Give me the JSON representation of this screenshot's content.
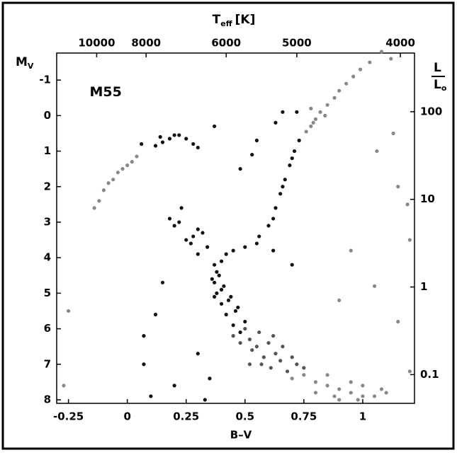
{
  "chart_data": {
    "type": "scatter",
    "xlabel": "B–V",
    "ylabel": {
      "main": "M",
      "sub": "V"
    },
    "x2label": {
      "main": "T",
      "sub": "eff",
      "unit": "[K]"
    },
    "y2label": {
      "numerator": "L",
      "denominator": "L",
      "sub": "o"
    },
    "annotation": {
      "text": "M55",
      "x": -0.16,
      "y": -0.65
    },
    "xlim": [
      -0.3,
      1.22
    ],
    "xticks": [
      {
        "value": -0.25,
        "label": "-0.25"
      },
      0,
      0.25,
      0.5,
      0.75,
      1
    ],
    "ylim": [
      8.1,
      -1.76
    ],
    "yticks": [
      -1,
      0,
      1,
      2,
      3,
      4,
      5,
      6,
      7,
      8
    ],
    "x2ticks": [
      {
        "value": -0.13,
        "label": "10000"
      },
      {
        "value": 0.08,
        "label": "8000"
      },
      {
        "value": 0.42,
        "label": "6000"
      },
      {
        "value": 0.72,
        "label": "5000"
      },
      {
        "value": 1.16,
        "label": "4000"
      }
    ],
    "y2log": true,
    "y2lim": [
      0.047,
      467
    ],
    "y2ticks": [
      0.1,
      1,
      10,
      100
    ],
    "series": [
      {
        "color": "#111111",
        "x": [
          0.12,
          0.15,
          0.18,
          0.2,
          0.22,
          0.25,
          0.28,
          0.06,
          0.14,
          0.3,
          0.56,
          0.6,
          0.63,
          0.65,
          0.67,
          0.69,
          0.71,
          0.73,
          0.62,
          0.66,
          0.7,
          0.45,
          0.5,
          0.55,
          0.42,
          0.4,
          0.38,
          0.37,
          0.38,
          0.4,
          0.42,
          0.45,
          0.48,
          0.4,
          0.43,
          0.46,
          0.5,
          0.39,
          0.41,
          0.44,
          0.47,
          0.37,
          0.36,
          0.37,
          0.3,
          0.2,
          0.25,
          0.28,
          0.15,
          0.12,
          0.07,
          0.1,
          0.2,
          0.3,
          0.35,
          0.33,
          0.07,
          0.3,
          0.53,
          0.55,
          0.63,
          0.66,
          0.72,
          0.48,
          0.37,
          0.62,
          0.7,
          0.22,
          0.27,
          0.32,
          0.34,
          0.23,
          0.18
        ],
        "values": [
          0.85,
          0.75,
          0.65,
          0.55,
          0.55,
          0.65,
          0.8,
          0.8,
          0.6,
          0.9,
          3.4,
          3.1,
          2.6,
          2.2,
          1.8,
          1.4,
          1.0,
          0.7,
          2.9,
          2.0,
          1.2,
          3.8,
          3.7,
          3.6,
          3.9,
          4.1,
          4.4,
          4.7,
          5.0,
          5.3,
          5.6,
          5.9,
          6.1,
          4.9,
          5.2,
          5.5,
          5.8,
          4.5,
          4.8,
          5.1,
          5.4,
          4.2,
          4.6,
          5.1,
          3.2,
          3.1,
          3.5,
          3.4,
          4.7,
          5.6,
          6.2,
          7.9,
          7.6,
          6.7,
          7.4,
          8.0,
          7.0,
          3.9,
          1.1,
          0.7,
          0.2,
          -0.1,
          -0.1,
          1.5,
          0.3,
          3.8,
          4.2,
          3.0,
          3.6,
          3.3,
          3.7,
          2.6,
          2.9
        ]
      },
      {
        "color": "#555555",
        "x": [
          0.52,
          0.55,
          0.5,
          0.56,
          0.6,
          0.58,
          0.63,
          0.53,
          0.57,
          0.61,
          0.65,
          0.68,
          0.62,
          0.66,
          0.7,
          0.72,
          0.75,
          0.48,
          0.45,
          0.52
        ],
        "values": [
          6.3,
          6.5,
          6.0,
          6.1,
          6.4,
          6.8,
          6.7,
          6.6,
          7.0,
          7.1,
          6.9,
          7.2,
          6.2,
          6.5,
          6.8,
          7.0,
          7.1,
          6.4,
          6.2,
          7.0
        ]
      },
      {
        "color": "#888888",
        "x": [
          -0.12,
          -0.1,
          -0.08,
          -0.06,
          -0.04,
          -0.02,
          0,
          0.02,
          0.04,
          -0.14,
          0.78,
          0.8,
          0.82,
          0.85,
          0.88,
          0.9,
          0.93,
          0.96,
          0.99,
          1.03,
          0.84,
          0.76,
          0.79,
          0.78,
          0.7,
          0.75,
          0.8,
          0.85,
          0.9,
          0.95,
          1.0,
          1.05,
          0.8,
          0.9,
          1.1,
          0.85,
          0.95,
          1.0,
          1.08,
          0.88,
          0.98,
          1.13,
          1.06,
          1.15,
          1.19,
          1.2,
          0.95,
          1.15,
          1.2,
          -0.25,
          -0.27,
          0.9,
          1.05,
          1.08,
          1.12
        ],
        "values": [
          2.4,
          2.1,
          1.9,
          1.8,
          1.6,
          1.5,
          1.4,
          1.3,
          1.15,
          2.6,
          0.3,
          0.1,
          -0.1,
          -0.3,
          -0.5,
          -0.7,
          -0.9,
          -1.1,
          -1.3,
          -1.5,
          0.0,
          0.45,
          0.2,
          -0.2,
          7.4,
          7.3,
          7.5,
          7.6,
          7.7,
          7.8,
          7.9,
          7.9,
          7.8,
          8.0,
          7.8,
          7.3,
          7.5,
          7.6,
          7.7,
          7.9,
          8.0,
          0.5,
          1.0,
          2.0,
          2.5,
          3.5,
          3.8,
          5.8,
          7.2,
          5.5,
          7.6,
          5.2,
          4.8,
          -1.8,
          -1.6
        ]
      }
    ]
  }
}
